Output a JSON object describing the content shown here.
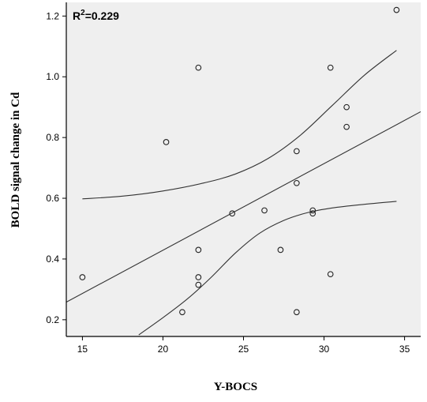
{
  "chart_data": {
    "type": "scatter",
    "title": "",
    "xlabel": "Y-BOCS",
    "ylabel": "BOLD signal change in Cd",
    "xlim": [
      14,
      36
    ],
    "ylim": [
      0.145,
      1.245
    ],
    "xticks": [
      15,
      20,
      25,
      30,
      35
    ],
    "yticks": [
      0.2,
      0.4,
      0.6,
      0.8,
      1.0,
      1.2
    ],
    "ytick_labels": [
      "0.2",
      "0.4",
      "0.6",
      "0.8",
      "1.0",
      "1.2"
    ],
    "annotation": {
      "prefix": "R",
      "superscript": "2",
      "suffix": "=0.229"
    },
    "grid": false,
    "background": "#efefef",
    "points": [
      {
        "x": 15.0,
        "y": 0.34
      },
      {
        "x": 20.2,
        "y": 0.785
      },
      {
        "x": 21.2,
        "y": 0.225
      },
      {
        "x": 22.2,
        "y": 1.03
      },
      {
        "x": 22.2,
        "y": 0.43
      },
      {
        "x": 22.2,
        "y": 0.34
      },
      {
        "x": 22.2,
        "y": 0.315
      },
      {
        "x": 24.3,
        "y": 0.55
      },
      {
        "x": 26.3,
        "y": 0.56
      },
      {
        "x": 27.3,
        "y": 0.43
      },
      {
        "x": 28.3,
        "y": 0.755
      },
      {
        "x": 28.3,
        "y": 0.65
      },
      {
        "x": 28.3,
        "y": 0.225
      },
      {
        "x": 29.3,
        "y": 0.56
      },
      {
        "x": 29.3,
        "y": 0.55
      },
      {
        "x": 30.4,
        "y": 1.03
      },
      {
        "x": 30.4,
        "y": 0.35
      },
      {
        "x": 31.4,
        "y": 0.9
      },
      {
        "x": 31.4,
        "y": 0.835
      },
      {
        "x": 34.5,
        "y": 1.22
      }
    ],
    "fit_line": [
      {
        "x": 14.0,
        "y": 0.258
      },
      {
        "x": 36.0,
        "y": 0.885
      }
    ],
    "ci_upper": [
      {
        "x": 15.0,
        "y": 0.598
      },
      {
        "x": 17.5,
        "y": 0.607
      },
      {
        "x": 20.0,
        "y": 0.624
      },
      {
        "x": 22.5,
        "y": 0.65
      },
      {
        "x": 24.5,
        "y": 0.68
      },
      {
        "x": 26.5,
        "y": 0.73
      },
      {
        "x": 28.5,
        "y": 0.806
      },
      {
        "x": 30.5,
        "y": 0.905
      },
      {
        "x": 32.5,
        "y": 1.005
      },
      {
        "x": 34.5,
        "y": 1.087
      }
    ],
    "ci_lower": [
      {
        "x": 18.5,
        "y": 0.15
      },
      {
        "x": 20.0,
        "y": 0.207
      },
      {
        "x": 21.5,
        "y": 0.268
      },
      {
        "x": 23.0,
        "y": 0.34
      },
      {
        "x": 24.5,
        "y": 0.42
      },
      {
        "x": 26.0,
        "y": 0.485
      },
      {
        "x": 27.5,
        "y": 0.527
      },
      {
        "x": 29.0,
        "y": 0.553
      },
      {
        "x": 30.5,
        "y": 0.568
      },
      {
        "x": 32.5,
        "y": 0.58
      },
      {
        "x": 34.5,
        "y": 0.59
      }
    ]
  }
}
